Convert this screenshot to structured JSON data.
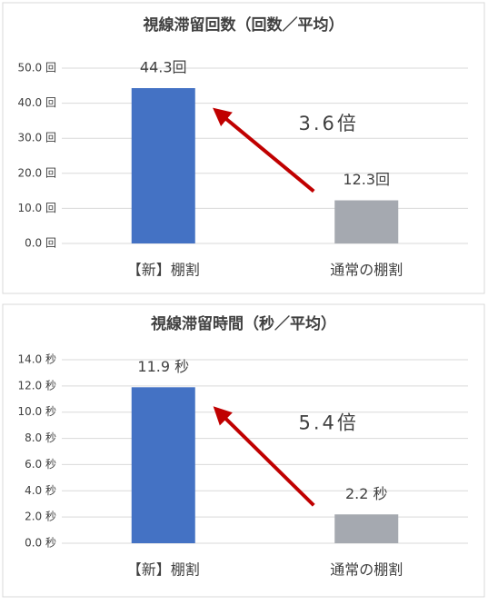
{
  "chart_data": [
    {
      "type": "bar",
      "title": "視線滞留回数（回数／平均）",
      "categories": [
        "【新】棚割",
        "通常の棚割"
      ],
      "values": [
        44.3,
        12.3
      ],
      "value_labels": [
        "44.3回",
        "12.3回"
      ],
      "colors": [
        "#4472c4",
        "#a5a9b0"
      ],
      "ylim": [
        0,
        50
      ],
      "yticks": [
        {
          "value": 0,
          "label": "0.0 回"
        },
        {
          "value": 10,
          "label": "10.0 回"
        },
        {
          "value": 20,
          "label": "20.0 回"
        },
        {
          "value": 30,
          "label": "30.0 回"
        },
        {
          "value": 40,
          "label": "40.0 回"
        },
        {
          "value": 50,
          "label": "50.0 回"
        }
      ],
      "grid": true,
      "annotation": "3.6倍"
    },
    {
      "type": "bar",
      "title": "視線滞留時間（秒／平均）",
      "categories": [
        "【新】棚割",
        "通常の棚割"
      ],
      "values": [
        11.9,
        2.2
      ],
      "value_labels": [
        "11.9 秒",
        "2.2 秒"
      ],
      "colors": [
        "#4472c4",
        "#a5a9b0"
      ],
      "ylim": [
        0,
        14
      ],
      "yticks": [
        {
          "value": 0,
          "label": "0.0 秒"
        },
        {
          "value": 2,
          "label": "2.0 秒"
        },
        {
          "value": 4,
          "label": "4.0 秒"
        },
        {
          "value": 6,
          "label": "6.0 秒"
        },
        {
          "value": 8,
          "label": "8.0 秒"
        },
        {
          "value": 10,
          "label": "10.0 秒"
        },
        {
          "value": 12,
          "label": "12.0 秒"
        },
        {
          "value": 14,
          "label": "14.0 秒"
        }
      ],
      "grid": true,
      "annotation": "5.4倍"
    }
  ]
}
